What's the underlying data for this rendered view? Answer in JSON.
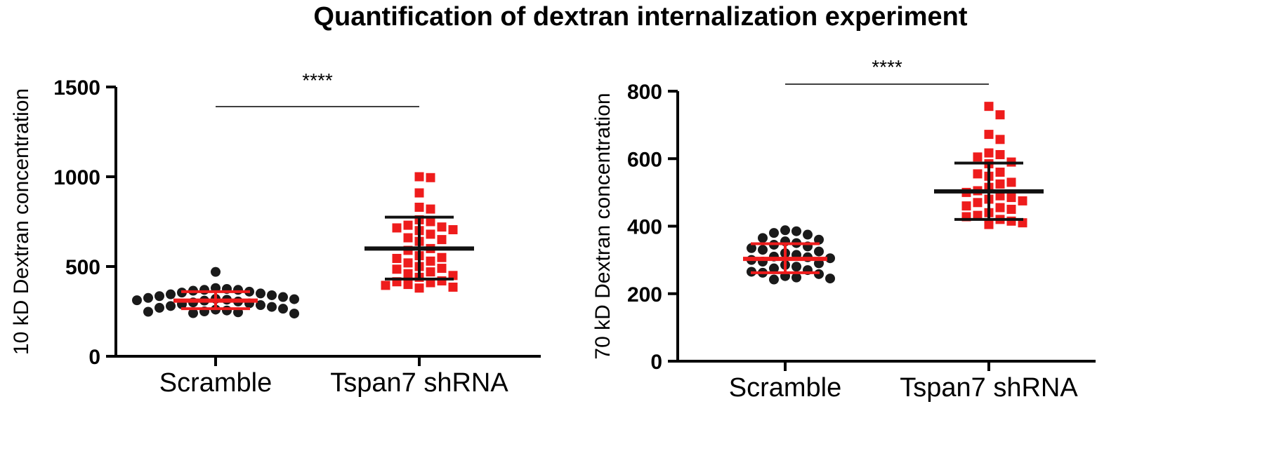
{
  "title": "Quantification of  dextran internalization experiment",
  "colors": {
    "scramble": "#1a1a1a",
    "tspan7": "#ee1c1c",
    "scramble_bar": "#ee1c1c",
    "tspan7_bar": "#111111"
  },
  "chart_data": [
    {
      "type": "scatter",
      "ylabel": "10 kD Dextran concentration",
      "ylim": [
        0,
        1500
      ],
      "yticks": [
        "0",
        "500",
        "1000",
        "1500"
      ],
      "categories": [
        "Scramble",
        "Tspan7 shRNA"
      ],
      "significance": "****",
      "series": [
        {
          "name": "Scramble",
          "marker": "circle",
          "mean": 310,
          "sd_low": 265,
          "sd_high": 360,
          "values": [
            470,
            380,
            375,
            370,
            370,
            365,
            360,
            355,
            350,
            345,
            340,
            335,
            330,
            325,
            320,
            318,
            315,
            312,
            310,
            305,
            300,
            295,
            290,
            285,
            280,
            275,
            270,
            265,
            260,
            255,
            250,
            248,
            245,
            240,
            238
          ]
        },
        {
          "name": "Tspan7 shRNA",
          "marker": "square",
          "mean": 600,
          "sd_low": 430,
          "sd_high": 775,
          "values": [
            1000,
            995,
            910,
            830,
            820,
            760,
            750,
            730,
            720,
            715,
            705,
            700,
            680,
            660,
            650,
            640,
            600,
            590,
            560,
            550,
            545,
            530,
            520,
            500,
            490,
            485,
            470,
            460,
            450,
            440,
            420,
            415,
            410,
            400,
            395,
            385,
            380
          ]
        }
      ]
    },
    {
      "type": "scatter",
      "ylabel": "70 kD Dextran concentration",
      "ylim": [
        0,
        800
      ],
      "yticks": [
        "0",
        "200",
        "400",
        "600",
        "800"
      ],
      "categories": [
        "Scramble",
        "Tspan7 shRNA"
      ],
      "significance": "****",
      "series": [
        {
          "name": "Scramble",
          "marker": "circle",
          "mean": 303,
          "sd_low": 262,
          "sd_high": 348,
          "values": [
            388,
            385,
            380,
            375,
            365,
            360,
            355,
            350,
            345,
            340,
            335,
            330,
            325,
            320,
            315,
            310,
            308,
            305,
            300,
            295,
            290,
            285,
            280,
            275,
            270,
            265,
            262,
            258,
            252,
            248,
            245,
            242
          ]
        },
        {
          "name": "Tspan7 shRNA",
          "marker": "square",
          "mean": 503,
          "sd_low": 420,
          "sd_high": 587,
          "values": [
            755,
            730,
            672,
            657,
            617,
            612,
            605,
            590,
            585,
            560,
            555,
            548,
            530,
            525,
            515,
            505,
            500,
            490,
            485,
            480,
            475,
            470,
            460,
            455,
            450,
            440,
            432,
            428,
            420,
            415,
            410,
            405
          ]
        }
      ]
    }
  ]
}
